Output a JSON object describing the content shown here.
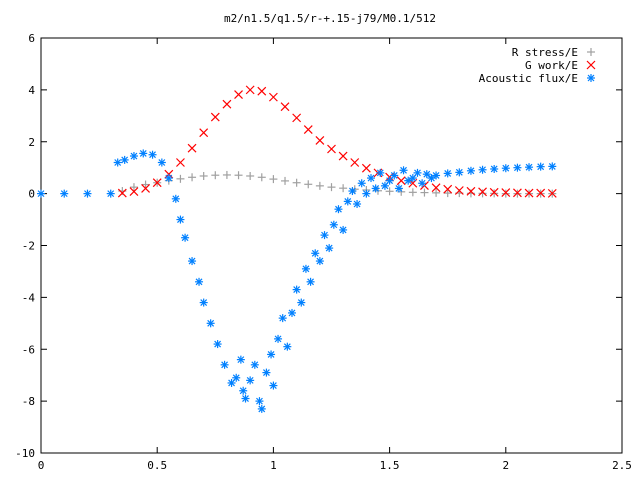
{
  "chart_data": {
    "type": "scatter",
    "title": "m2/n1.5/q1.5/r-+.15-j79/M0.1/512",
    "xlabel": "",
    "ylabel": "",
    "xlim": [
      0,
      2.5
    ],
    "ylim": [
      -10,
      6
    ],
    "x_ticks": [
      "0",
      "0.5",
      "1",
      "1.5",
      "2",
      "2.5"
    ],
    "y_ticks": [
      "-10",
      "-8",
      "-6",
      "-4",
      "-2",
      "0",
      "2",
      "4",
      "6"
    ],
    "grid": false,
    "legend_position": "top-right",
    "series": [
      {
        "name": "R stress/E",
        "marker": "plus",
        "color": "#a0a0a0",
        "points": [
          [
            0.35,
            0.1
          ],
          [
            0.4,
            0.25
          ],
          [
            0.45,
            0.35
          ],
          [
            0.5,
            0.42
          ],
          [
            0.55,
            0.5
          ],
          [
            0.6,
            0.57
          ],
          [
            0.65,
            0.63
          ],
          [
            0.7,
            0.68
          ],
          [
            0.75,
            0.71
          ],
          [
            0.8,
            0.72
          ],
          [
            0.85,
            0.71
          ],
          [
            0.9,
            0.68
          ],
          [
            0.95,
            0.63
          ],
          [
            1.0,
            0.56
          ],
          [
            1.05,
            0.49
          ],
          [
            1.1,
            0.42
          ],
          [
            1.15,
            0.36
          ],
          [
            1.2,
            0.3
          ],
          [
            1.25,
            0.25
          ],
          [
            1.3,
            0.21
          ],
          [
            1.35,
            0.17
          ],
          [
            1.4,
            0.14
          ],
          [
            1.45,
            0.11
          ],
          [
            1.5,
            0.09
          ],
          [
            1.55,
            0.07
          ],
          [
            1.6,
            0.05
          ],
          [
            1.65,
            0.04
          ],
          [
            1.7,
            0.03
          ],
          [
            1.75,
            0.02
          ],
          [
            1.8,
            0.02
          ],
          [
            1.85,
            0.01
          ],
          [
            1.9,
            0.01
          ],
          [
            1.95,
            0.01
          ],
          [
            2.0,
            0.0
          ],
          [
            2.05,
            0.0
          ],
          [
            2.1,
            0.0
          ],
          [
            2.15,
            0.0
          ],
          [
            2.2,
            0.0
          ]
        ]
      },
      {
        "name": "G work/E",
        "marker": "cross",
        "color": "#ff0000",
        "points": [
          [
            0.35,
            0.02
          ],
          [
            0.4,
            0.08
          ],
          [
            0.45,
            0.2
          ],
          [
            0.5,
            0.42
          ],
          [
            0.55,
            0.75
          ],
          [
            0.6,
            1.2
          ],
          [
            0.65,
            1.75
          ],
          [
            0.7,
            2.35
          ],
          [
            0.75,
            2.95
          ],
          [
            0.8,
            3.45
          ],
          [
            0.85,
            3.82
          ],
          [
            0.9,
            4.0
          ],
          [
            0.95,
            3.95
          ],
          [
            1.0,
            3.72
          ],
          [
            1.05,
            3.35
          ],
          [
            1.1,
            2.92
          ],
          [
            1.15,
            2.47
          ],
          [
            1.2,
            2.05
          ],
          [
            1.25,
            1.72
          ],
          [
            1.3,
            1.45
          ],
          [
            1.35,
            1.2
          ],
          [
            1.4,
            0.98
          ],
          [
            1.45,
            0.8
          ],
          [
            1.5,
            0.64
          ],
          [
            1.55,
            0.5
          ],
          [
            1.6,
            0.4
          ],
          [
            1.65,
            0.31
          ],
          [
            1.7,
            0.23
          ],
          [
            1.75,
            0.17
          ],
          [
            1.8,
            0.12
          ],
          [
            1.85,
            0.09
          ],
          [
            1.9,
            0.07
          ],
          [
            1.95,
            0.05
          ],
          [
            2.0,
            0.04
          ],
          [
            2.05,
            0.03
          ],
          [
            2.1,
            0.02
          ],
          [
            2.15,
            0.02
          ],
          [
            2.2,
            0.01
          ]
        ]
      },
      {
        "name": "Acoustic flux/E",
        "marker": "star",
        "color": "#0080ff",
        "points": [
          [
            0.0,
            0.0
          ],
          [
            0.1,
            0.0
          ],
          [
            0.2,
            0.0
          ],
          [
            0.3,
            0.0
          ],
          [
            0.33,
            1.2
          ],
          [
            0.36,
            1.3
          ],
          [
            0.4,
            1.45
          ],
          [
            0.44,
            1.55
          ],
          [
            0.48,
            1.5
          ],
          [
            0.52,
            1.2
          ],
          [
            0.55,
            0.6
          ],
          [
            0.58,
            -0.2
          ],
          [
            0.6,
            -1.0
          ],
          [
            0.62,
            -1.7
          ],
          [
            0.65,
            -2.6
          ],
          [
            0.68,
            -3.4
          ],
          [
            0.7,
            -4.2
          ],
          [
            0.73,
            -5.0
          ],
          [
            0.76,
            -5.8
          ],
          [
            0.79,
            -6.6
          ],
          [
            0.82,
            -7.3
          ],
          [
            0.84,
            -7.1
          ],
          [
            0.86,
            -6.4
          ],
          [
            0.87,
            -7.6
          ],
          [
            0.88,
            -7.9
          ],
          [
            0.9,
            -7.2
          ],
          [
            0.92,
            -6.6
          ],
          [
            0.94,
            -8.0
          ],
          [
            0.95,
            -8.3
          ],
          [
            0.97,
            -6.9
          ],
          [
            0.99,
            -6.2
          ],
          [
            1.0,
            -7.4
          ],
          [
            1.02,
            -5.6
          ],
          [
            1.04,
            -4.8
          ],
          [
            1.06,
            -5.9
          ],
          [
            1.08,
            -4.6
          ],
          [
            1.1,
            -3.7
          ],
          [
            1.12,
            -4.2
          ],
          [
            1.14,
            -2.9
          ],
          [
            1.16,
            -3.4
          ],
          [
            1.18,
            -2.3
          ],
          [
            1.2,
            -2.6
          ],
          [
            1.22,
            -1.6
          ],
          [
            1.24,
            -2.1
          ],
          [
            1.26,
            -1.2
          ],
          [
            1.28,
            -0.6
          ],
          [
            1.3,
            -1.4
          ],
          [
            1.32,
            -0.3
          ],
          [
            1.34,
            0.1
          ],
          [
            1.36,
            -0.4
          ],
          [
            1.38,
            0.4
          ],
          [
            1.4,
            0.0
          ],
          [
            1.42,
            0.6
          ],
          [
            1.44,
            0.2
          ],
          [
            1.46,
            0.8
          ],
          [
            1.48,
            0.3
          ],
          [
            1.5,
            0.5
          ],
          [
            1.52,
            0.7
          ],
          [
            1.54,
            0.2
          ],
          [
            1.56,
            0.9
          ],
          [
            1.58,
            0.5
          ],
          [
            1.6,
            0.6
          ],
          [
            1.62,
            0.8
          ],
          [
            1.64,
            0.4
          ],
          [
            1.66,
            0.75
          ],
          [
            1.68,
            0.6
          ],
          [
            1.7,
            0.7
          ],
          [
            1.75,
            0.78
          ],
          [
            1.8,
            0.82
          ],
          [
            1.85,
            0.88
          ],
          [
            1.9,
            0.92
          ],
          [
            1.95,
            0.95
          ],
          [
            2.0,
            0.98
          ],
          [
            2.05,
            1.0
          ],
          [
            2.1,
            1.02
          ],
          [
            2.15,
            1.04
          ],
          [
            2.2,
            1.05
          ]
        ]
      }
    ]
  }
}
